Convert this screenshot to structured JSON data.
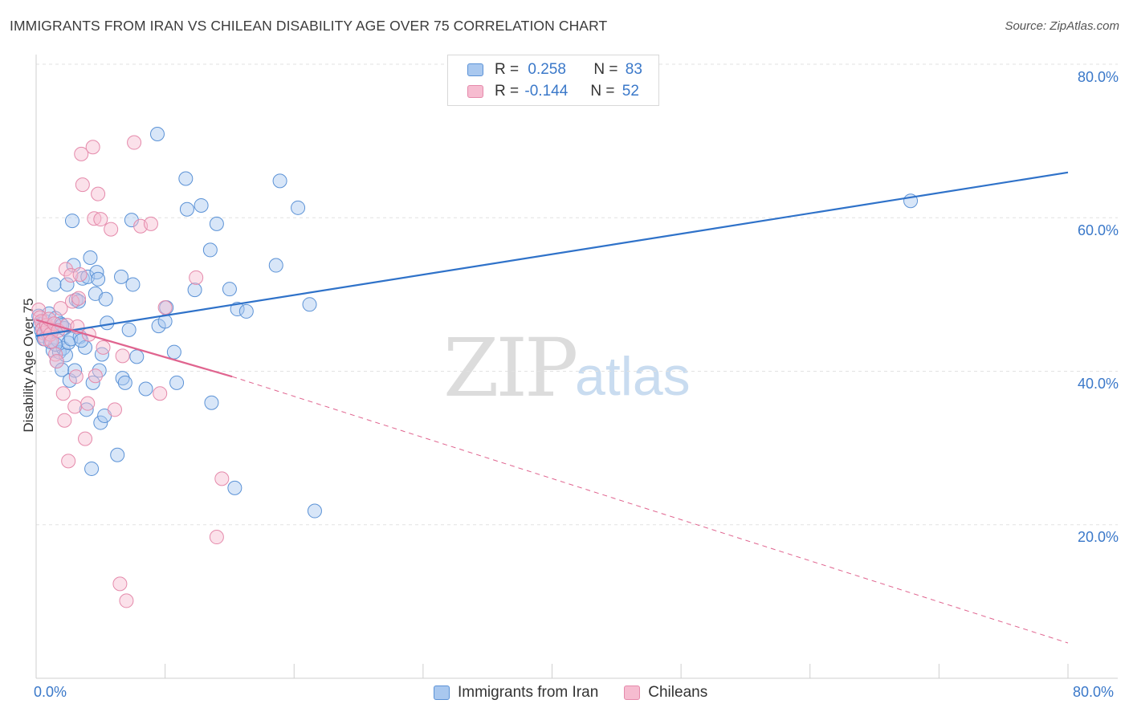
{
  "header": {
    "title": "IMMIGRANTS FROM IRAN VS CHILEAN DISABILITY AGE OVER 75 CORRELATION CHART",
    "source": "Source: ZipAtlas.com"
  },
  "watermark": {
    "zip": "ZIP",
    "atlas": "atlas"
  },
  "stats": {
    "iran": {
      "r_label": "R =",
      "r": "0.258",
      "n_label": "N =",
      "n": "83"
    },
    "chile": {
      "r_label": "R =",
      "r": "-0.144",
      "n_label": "N =",
      "n": "52"
    }
  },
  "legend": {
    "iran": "Immigrants from Iran",
    "chile": "Chileans"
  },
  "colors": {
    "iran_fill": "#a9c8ef",
    "iran_stroke": "#5b92d6",
    "iran_line": "#2f72c9",
    "chile_fill": "#f6bcd0",
    "chile_stroke": "#e58aab",
    "chile_line": "#e0648f",
    "grid": "#e2e2e2",
    "tick_text": "#3a78c9"
  },
  "chart_data": {
    "type": "scatter",
    "title": "IMMIGRANTS FROM IRAN VS CHILEAN DISABILITY AGE OVER 75 CORRELATION CHART",
    "xlabel": "",
    "ylabel": "Disability Age Over 75",
    "xlim": [
      0,
      80
    ],
    "ylim": [
      0,
      80
    ],
    "x_ticks": [
      "0.0%",
      "80.0%"
    ],
    "y_ticks": [
      {
        "value": 80,
        "label": "80.0%"
      },
      {
        "value": 60,
        "label": "60.0%"
      },
      {
        "value": 40,
        "label": "40.0%"
      },
      {
        "value": 20,
        "label": "20.0%"
      }
    ],
    "grid": true,
    "legend_position": "bottom",
    "series": [
      {
        "name": "Immigrants from Iran",
        "r": 0.258,
        "n": 83,
        "trend": {
          "x": [
            0,
            80
          ],
          "y": [
            44.6,
            65.9
          ],
          "style": "solid"
        },
        "points": [
          [
            0.2,
            47.2
          ],
          [
            0.3,
            46.1
          ],
          [
            0.4,
            45.3
          ],
          [
            0.5,
            44.6
          ],
          [
            0.6,
            44.2
          ],
          [
            0.7,
            46.5
          ],
          [
            0.8,
            45.8
          ],
          [
            0.9,
            44.9
          ],
          [
            1.0,
            47.5
          ],
          [
            1.1,
            43.8
          ],
          [
            1.2,
            45.1
          ],
          [
            1.3,
            42.7
          ],
          [
            1.4,
            51.3
          ],
          [
            1.5,
            46.9
          ],
          [
            1.6,
            41.3
          ],
          [
            1.7,
            44.0
          ],
          [
            1.8,
            42.5
          ],
          [
            1.9,
            46.2
          ],
          [
            2.0,
            40.2
          ],
          [
            2.1,
            43.0
          ],
          [
            2.2,
            45.6
          ],
          [
            2.3,
            42.1
          ],
          [
            2.4,
            51.3
          ],
          [
            2.5,
            43.7
          ],
          [
            2.6,
            38.8
          ],
          [
            2.7,
            44.2
          ],
          [
            2.8,
            59.6
          ],
          [
            2.9,
            53.8
          ],
          [
            3.0,
            40.1
          ],
          [
            3.1,
            49.3
          ],
          [
            3.3,
            49.1
          ],
          [
            3.4,
            44.5
          ],
          [
            3.6,
            52.1
          ],
          [
            3.8,
            43.1
          ],
          [
            3.9,
            35.0
          ],
          [
            4.0,
            52.3
          ],
          [
            4.2,
            54.8
          ],
          [
            4.3,
            27.3
          ],
          [
            4.4,
            38.5
          ],
          [
            4.6,
            50.1
          ],
          [
            4.7,
            52.9
          ],
          [
            4.8,
            52.0
          ],
          [
            4.9,
            40.1
          ],
          [
            5.0,
            33.3
          ],
          [
            5.1,
            42.2
          ],
          [
            5.3,
            34.2
          ],
          [
            5.4,
            49.4
          ],
          [
            5.5,
            46.3
          ],
          [
            6.3,
            29.1
          ],
          [
            6.6,
            52.3
          ],
          [
            6.7,
            39.1
          ],
          [
            6.9,
            38.5
          ],
          [
            7.2,
            45.4
          ],
          [
            7.4,
            59.7
          ],
          [
            7.5,
            51.3
          ],
          [
            7.8,
            41.9
          ],
          [
            8.5,
            37.7
          ],
          [
            9.4,
            70.9
          ],
          [
            9.5,
            45.9
          ],
          [
            10.0,
            46.5
          ],
          [
            10.1,
            48.3
          ],
          [
            10.7,
            42.5
          ],
          [
            10.9,
            38.5
          ],
          [
            11.6,
            65.1
          ],
          [
            11.7,
            61.1
          ],
          [
            12.3,
            50.6
          ],
          [
            12.8,
            61.6
          ],
          [
            13.5,
            55.8
          ],
          [
            13.6,
            35.9
          ],
          [
            14.0,
            59.2
          ],
          [
            15.0,
            50.7
          ],
          [
            15.4,
            24.8
          ],
          [
            15.6,
            48.1
          ],
          [
            16.3,
            47.8
          ],
          [
            18.6,
            53.8
          ],
          [
            18.9,
            64.8
          ],
          [
            20.3,
            61.3
          ],
          [
            21.2,
            48.7
          ],
          [
            21.6,
            21.8
          ],
          [
            67.8,
            62.2
          ],
          [
            2.0,
            46.0
          ],
          [
            1.5,
            43.5
          ],
          [
            3.5,
            44.0
          ]
        ]
      },
      {
        "name": "Chileans",
        "r": -0.144,
        "n": 52,
        "trend": {
          "x": [
            0,
            15.2
          ],
          "y": [
            46.7,
            39.3
          ],
          "style": "solid",
          "extension": {
            "x": [
              15.2,
              80
            ],
            "y": [
              39.3,
              4.6
            ],
            "style": "dashed"
          }
        },
        "points": [
          [
            0.2,
            48.0
          ],
          [
            0.3,
            47.0
          ],
          [
            0.4,
            46.5
          ],
          [
            0.5,
            45.5
          ],
          [
            0.6,
            45.0
          ],
          [
            0.7,
            44.2
          ],
          [
            0.8,
            46.0
          ],
          [
            0.9,
            45.6
          ],
          [
            1.0,
            46.8
          ],
          [
            1.1,
            44.8
          ],
          [
            1.2,
            43.9
          ],
          [
            1.4,
            46.2
          ],
          [
            1.5,
            42.2
          ],
          [
            1.6,
            41.3
          ],
          [
            1.7,
            45.3
          ],
          [
            1.9,
            48.2
          ],
          [
            2.1,
            37.1
          ],
          [
            2.2,
            33.6
          ],
          [
            2.3,
            53.3
          ],
          [
            2.4,
            46.0
          ],
          [
            2.5,
            28.3
          ],
          [
            2.7,
            52.5
          ],
          [
            2.8,
            49.1
          ],
          [
            3.0,
            35.4
          ],
          [
            3.1,
            39.3
          ],
          [
            3.2,
            45.8
          ],
          [
            3.4,
            52.6
          ],
          [
            3.5,
            68.3
          ],
          [
            3.6,
            64.3
          ],
          [
            3.8,
            31.2
          ],
          [
            4.0,
            35.8
          ],
          [
            4.1,
            44.8
          ],
          [
            4.4,
            69.2
          ],
          [
            4.5,
            59.9
          ],
          [
            4.6,
            39.4
          ],
          [
            4.8,
            63.1
          ],
          [
            5.0,
            59.8
          ],
          [
            5.2,
            43.1
          ],
          [
            5.8,
            58.5
          ],
          [
            6.1,
            35.0
          ],
          [
            6.5,
            12.3
          ],
          [
            6.7,
            42.0
          ],
          [
            7.0,
            10.1
          ],
          [
            7.6,
            69.8
          ],
          [
            8.1,
            58.9
          ],
          [
            8.9,
            59.2
          ],
          [
            9.6,
            37.1
          ],
          [
            10.0,
            48.3
          ],
          [
            12.4,
            52.2
          ],
          [
            14.0,
            18.4
          ],
          [
            14.4,
            26.0
          ],
          [
            3.3,
            49.5
          ]
        ]
      }
    ]
  }
}
